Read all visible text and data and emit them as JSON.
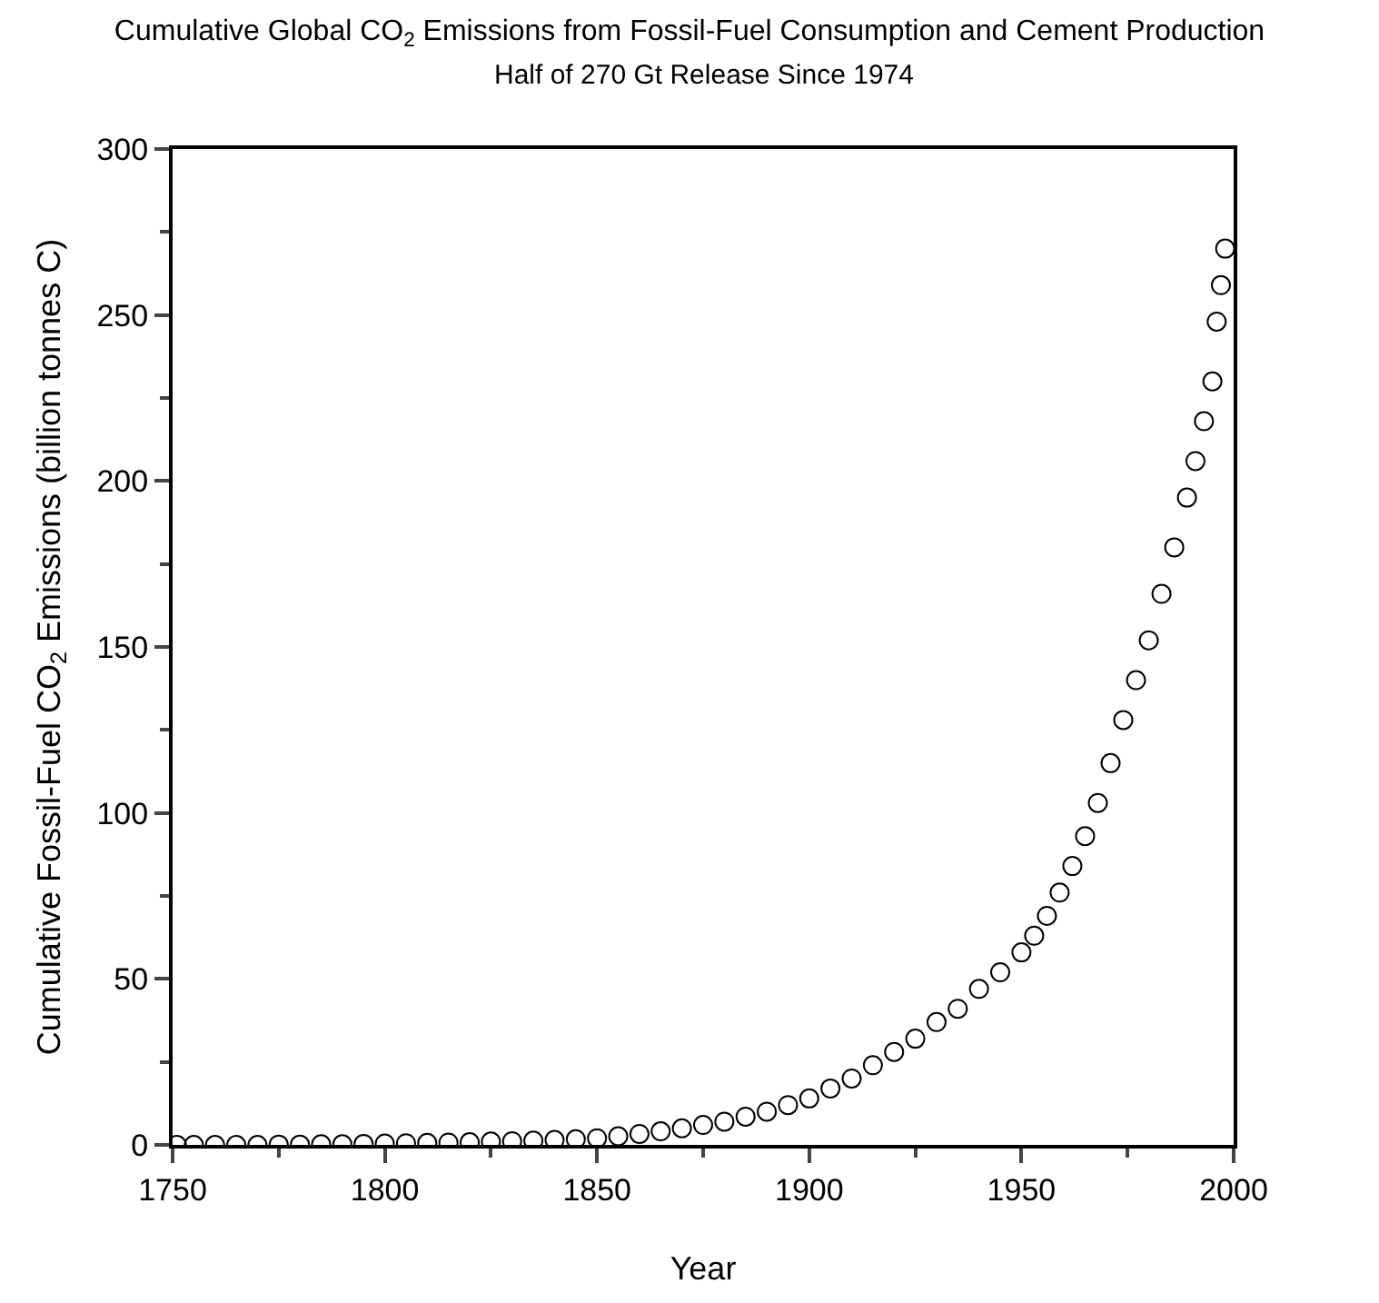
{
  "chart_data": {
    "type": "scatter",
    "title": "Cumulative Global CO$_{2}$ Emissions from Fossil-Fuel Consumption and Cement Production",
    "subtitle": "Half of 270 Gt Release Since 1974",
    "xlabel": "Year",
    "ylabel": "Cumulative Fossil-Fuel CO$_{2}$ Emissions (billion tonnes C)",
    "x": [
      1751,
      1755,
      1760,
      1765,
      1770,
      1775,
      1780,
      1785,
      1790,
      1795,
      1800,
      1805,
      1810,
      1815,
      1820,
      1825,
      1830,
      1835,
      1840,
      1845,
      1850,
      1855,
      1860,
      1865,
      1870,
      1875,
      1880,
      1885,
      1890,
      1895,
      1900,
      1905,
      1910,
      1915,
      1920,
      1925,
      1930,
      1935,
      1940,
      1945,
      1950,
      1953,
      1956,
      1959,
      1962,
      1965,
      1968,
      1971,
      1974,
      1977,
      1980,
      1983,
      1986,
      1989,
      1991,
      1993,
      1995,
      1996,
      1997,
      1998
    ],
    "series": [
      {
        "color": "#000000",
        "values": [
          0,
          0,
          0,
          0,
          0,
          0.1,
          0.1,
          0.2,
          0.2,
          0.3,
          0.4,
          0.5,
          0.6,
          0.7,
          0.8,
          1,
          1.1,
          1.3,
          1.5,
          1.7,
          2,
          2.6,
          3.3,
          4.1,
          5,
          6,
          7,
          8.5,
          10,
          12,
          14,
          17,
          20,
          24,
          28,
          32,
          37,
          41,
          47,
          52,
          58,
          63,
          69,
          76,
          84,
          93,
          103,
          115,
          128,
          140,
          152,
          166,
          180,
          195,
          206,
          218,
          230,
          248,
          259,
          270
        ]
      }
    ],
    "xlim": [
      1750,
      2000
    ],
    "ylim": [
      0,
      300
    ],
    "xticks": [
      1750,
      1800,
      1850,
      1900,
      1950,
      2000
    ],
    "yticks": [
      0,
      50,
      100,
      150,
      200,
      250,
      300
    ],
    "marker": "circle"
  }
}
